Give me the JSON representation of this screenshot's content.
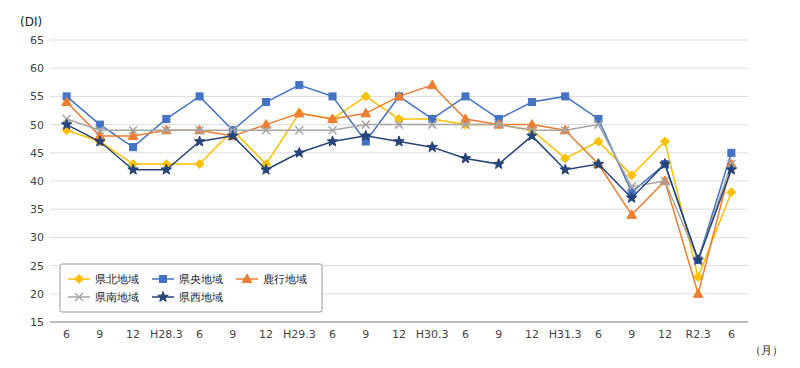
{
  "chart_data": {
    "type": "line",
    "ylabel": "(DI)",
    "xlabel": "（月）",
    "categories": [
      "6",
      "9",
      "12",
      "H28.3",
      "6",
      "9",
      "12",
      "H29.3",
      "6",
      "9",
      "12",
      "H30.3",
      "6",
      "9",
      "12",
      "H31.3",
      "6",
      "9",
      "12",
      "R2.3",
      "6"
    ],
    "series": [
      {
        "name": "県北地域",
        "color": "#ffc000",
        "marker": "diamond",
        "values": [
          49,
          47,
          43,
          43,
          43,
          49,
          43,
          52,
          51,
          55,
          51,
          51,
          50,
          50,
          49,
          44,
          47,
          41,
          47,
          23,
          38
        ]
      },
      {
        "name": "県央地域",
        "color": "#4472c4",
        "marker": "square",
        "values": [
          55,
          50,
          46,
          51,
          55,
          49,
          54,
          57,
          55,
          47,
          55,
          51,
          55,
          51,
          54,
          55,
          51,
          38,
          43,
          26,
          45
        ]
      },
      {
        "name": "鹿行地域",
        "color": "#ed7d31",
        "marker": "triangle",
        "values": [
          54,
          48,
          48,
          49,
          49,
          48,
          50,
          52,
          51,
          52,
          55,
          57,
          51,
          50,
          50,
          49,
          43,
          34,
          40,
          20,
          43
        ]
      },
      {
        "name": "県南地域",
        "color": "#a5a5a5",
        "marker": "x",
        "values": [
          51,
          49,
          49,
          49,
          49,
          49,
          49,
          49,
          49,
          50,
          50,
          50,
          50,
          50,
          49,
          49,
          50,
          39,
          40,
          26,
          43
        ]
      },
      {
        "name": "県西地域",
        "color": "#264478",
        "marker": "star",
        "values": [
          50,
          47,
          42,
          42,
          47,
          48,
          42,
          45,
          47,
          48,
          47,
          46,
          44,
          43,
          48,
          42,
          43,
          37,
          43,
          26,
          42
        ]
      }
    ],
    "ylim": [
      15,
      65
    ],
    "yticks": [
      15,
      20,
      25,
      30,
      35,
      40,
      45,
      50,
      55,
      60,
      65
    ],
    "grid": true,
    "legend": "lower left"
  }
}
